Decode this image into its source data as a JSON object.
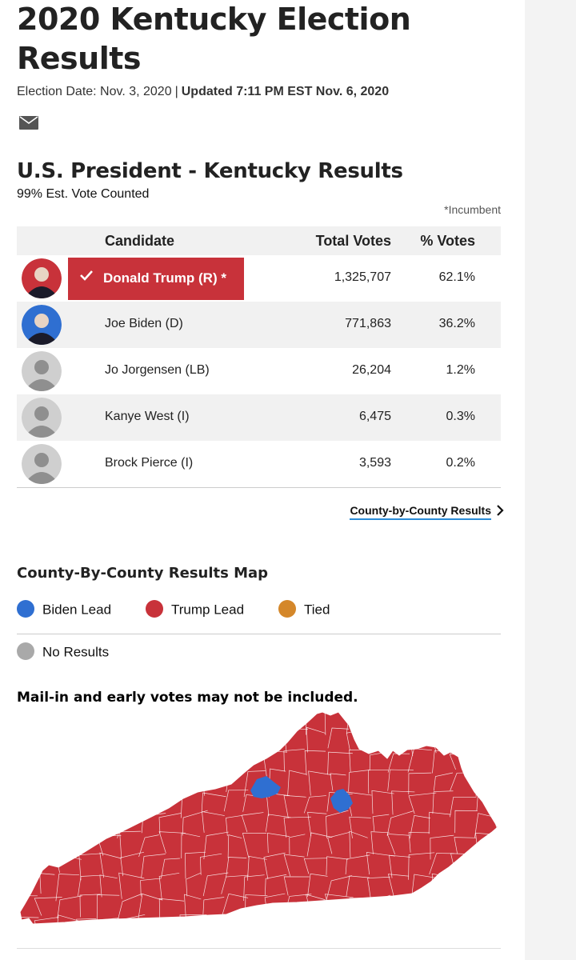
{
  "header": {
    "title": "2020 Kentucky Election Results",
    "election_date": "Election Date: Nov. 3, 2020",
    "separator": "|",
    "updated": "Updated 7:11 PM EST Nov. 6, 2020",
    "mail_icon": "mail-icon"
  },
  "race": {
    "title": "U.S. President - Kentucky Results",
    "counted": "99% Est. Vote Counted",
    "incumbent_note": "*Incumbent",
    "columns": {
      "candidate": "Candidate",
      "total_votes": "Total Votes",
      "pct_votes": "% Votes"
    },
    "candidates": [
      {
        "name": "Donald Trump (R) *",
        "votes": "1,325,707",
        "pct": "62.1%",
        "winner": true,
        "avatar_color": "#c8323a"
      },
      {
        "name": "Joe Biden (D)",
        "votes": "771,863",
        "pct": "36.2%",
        "winner": false,
        "avatar_color": "#2f6fd1"
      },
      {
        "name": "Jo Jorgensen (LB)",
        "votes": "26,204",
        "pct": "1.2%",
        "winner": false,
        "avatar_color": "#cfcfcf"
      },
      {
        "name": "Kanye West (I)",
        "votes": "6,475",
        "pct": "0.3%",
        "winner": false,
        "avatar_color": "#cfcfcf"
      },
      {
        "name": "Brock Pierce (I)",
        "votes": "3,593",
        "pct": "0.2%",
        "winner": false,
        "avatar_color": "#cfcfcf"
      }
    ],
    "county_link": "County-by-County Results"
  },
  "map": {
    "title": "County-By-County Results Map",
    "legend": [
      {
        "label": "Biden Lead",
        "color": "#2f6fd1"
      },
      {
        "label": "Trump Lead",
        "color": "#c8323a"
      },
      {
        "label": "Tied",
        "color": "#d4872a"
      },
      {
        "label": "No Results",
        "color": "#a9a9a9"
      }
    ],
    "note": "Mail-in and early votes may not be included.",
    "colors": {
      "trump": "#c8323a",
      "biden": "#2f6fd1",
      "border": "#ffffff"
    }
  }
}
